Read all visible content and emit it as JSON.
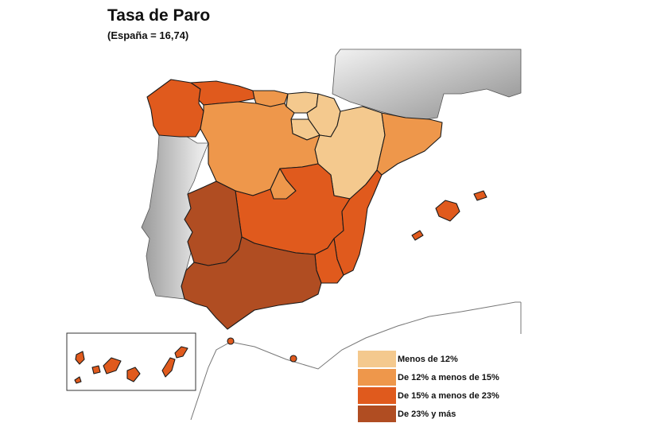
{
  "title": "Tasa de Paro",
  "subtitle": "(España = 16,74)",
  "colors": {
    "c1": "#f4c98e",
    "c2": "#ee974b",
    "c3": "#e05a1d",
    "c4": "#b04d22",
    "neighbor_gray": "#c8c8c8"
  },
  "legend": [
    {
      "label": "Menos de 12%",
      "color": "#f4c98e"
    },
    {
      "label": "De 12% a menos de 15%",
      "color": "#ee974b"
    },
    {
      "label": "De 15% a menos de 23%",
      "color": "#e05a1d"
    },
    {
      "label": "De 23% y más",
      "color": "#b04d22"
    }
  ]
}
